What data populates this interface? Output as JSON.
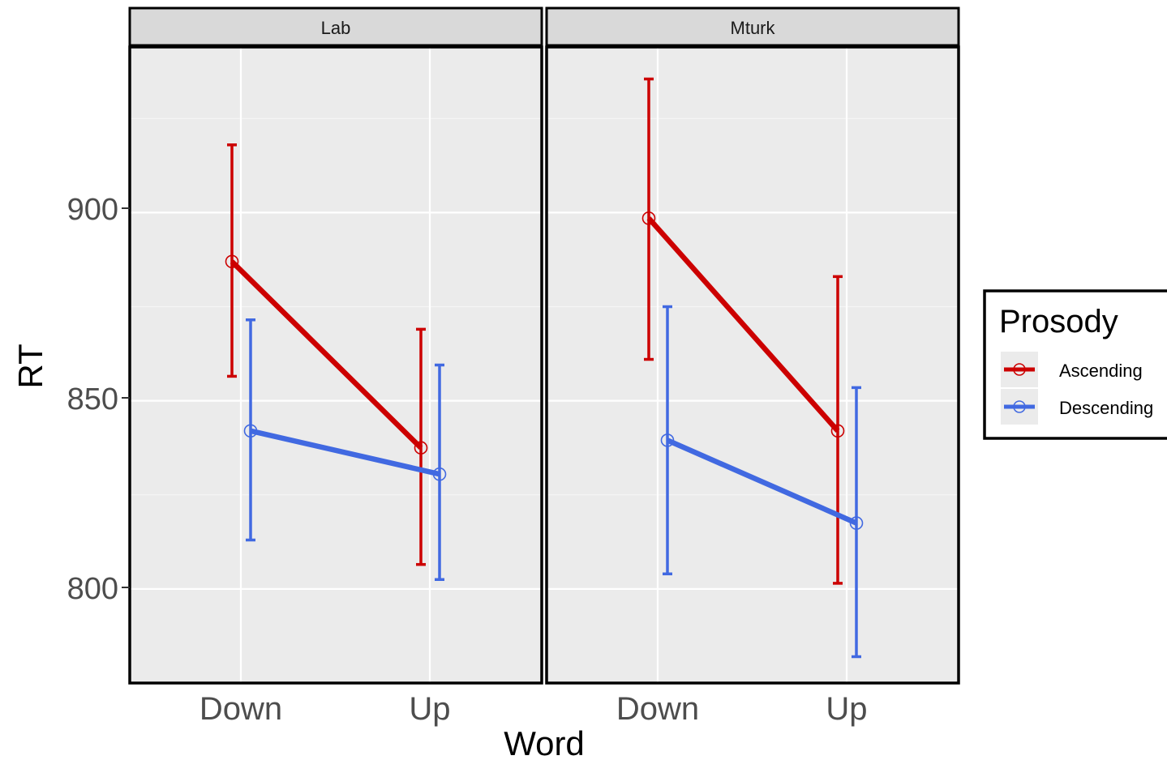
{
  "chart_data": {
    "type": "line",
    "xlabel": "Word",
    "ylabel": "RT",
    "categories": [
      "Down",
      "Up"
    ],
    "yticks": [
      "800",
      "850",
      "900"
    ],
    "ylim": [
      775,
      944
    ],
    "grid": true,
    "legend": {
      "title": "Prosody",
      "position": "right"
    },
    "panels": [
      {
        "name": "Lab",
        "series": [
          {
            "name": "Ascending",
            "color": "#cc0000",
            "values": [
              887,
              837.5
            ],
            "lower": [
              856.5,
              806.5
            ],
            "upper": [
              918,
              869
            ]
          },
          {
            "name": "Descending",
            "color": "#4169e1",
            "values": [
              842,
              830.5
            ],
            "lower": [
              813,
              802.5
            ],
            "upper": [
              871.5,
              859.5
            ]
          }
        ]
      },
      {
        "name": "Mturk",
        "series": [
          {
            "name": "Ascending",
            "color": "#cc0000",
            "values": [
              898.5,
              842
            ],
            "lower": [
              861,
              801.5
            ],
            "upper": [
              935.5,
              883
            ]
          },
          {
            "name": "Descending",
            "color": "#4169e1",
            "values": [
              839.5,
              817.5
            ],
            "lower": [
              804,
              782
            ],
            "upper": [
              875,
              853.5
            ]
          }
        ]
      }
    ]
  }
}
